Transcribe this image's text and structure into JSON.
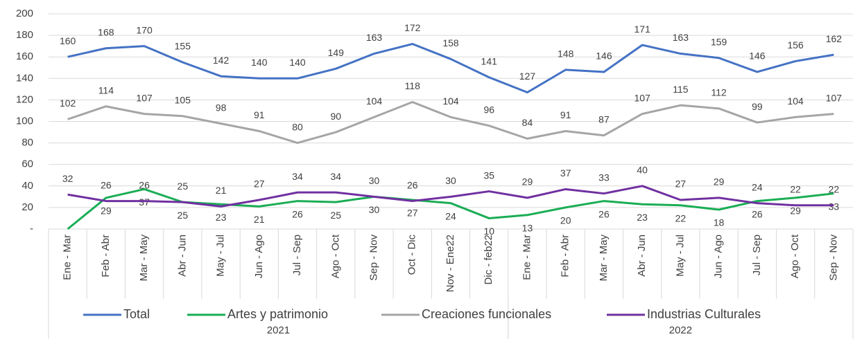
{
  "chart_data": {
    "type": "line",
    "categories": [
      "Ene - Mar",
      "Feb - Abr",
      "Mar - May",
      "Abr - Jun",
      "May - Jul",
      "Jun - Ago",
      "Jul - Sep",
      "Ago - Oct",
      "Sep - Nov",
      "Oct - Dic",
      "Nov - Ene22",
      "Dic - feb22",
      "Ene - Mar",
      "Feb - Abr",
      "Mar - May",
      "Abr - Jun",
      "May - Jul",
      "Jun - Ago",
      "Jul - Sep",
      "Ago - Oct",
      "Sep - Nov"
    ],
    "groups": [
      {
        "label": "2021",
        "count": 12
      },
      {
        "label": "2022",
        "count": 9
      }
    ],
    "series": [
      {
        "name": "Total",
        "color": "#4472c4",
        "values": [
          160,
          168,
          170,
          155,
          142,
          140,
          140,
          149,
          163,
          172,
          158,
          141,
          127,
          148,
          146,
          171,
          163,
          159,
          146,
          156,
          162
        ]
      },
      {
        "name": "Artes y patrimonio",
        "color": "#1aad55",
        "values": [
          0,
          29,
          37,
          25,
          23,
          21,
          26,
          25,
          30,
          27,
          24,
          10,
          13,
          20,
          26,
          23,
          22,
          18,
          26,
          29,
          33
        ],
        "value_labels": [
          null,
          "29",
          "37",
          "25",
          "23",
          "21",
          "26",
          "25",
          "30",
          "27",
          "24",
          "10",
          "13",
          "20",
          "26",
          "23",
          "22",
          "18",
          "26",
          "29",
          "33"
        ]
      },
      {
        "name": "Creaciones funcionales",
        "color": "#a5a5a5",
        "values": [
          102,
          114,
          107,
          105,
          98,
          91,
          80,
          90,
          104,
          118,
          104,
          96,
          84,
          91,
          87,
          107,
          115,
          112,
          99,
          104,
          107
        ]
      },
      {
        "name": "Industrias Culturales",
        "color": "#7030a0",
        "values": [
          32,
          26,
          26,
          25,
          21,
          27,
          34,
          34,
          30,
          26,
          30,
          35,
          29,
          37,
          33,
          40,
          27,
          29,
          24,
          22,
          22
        ]
      }
    ],
    "ylim": [
      0,
      200
    ],
    "yticks": [
      {
        "value": 0,
        "label": "-"
      },
      20,
      40,
      60,
      80,
      100,
      120,
      140,
      160,
      180,
      200
    ],
    "grid": true
  }
}
